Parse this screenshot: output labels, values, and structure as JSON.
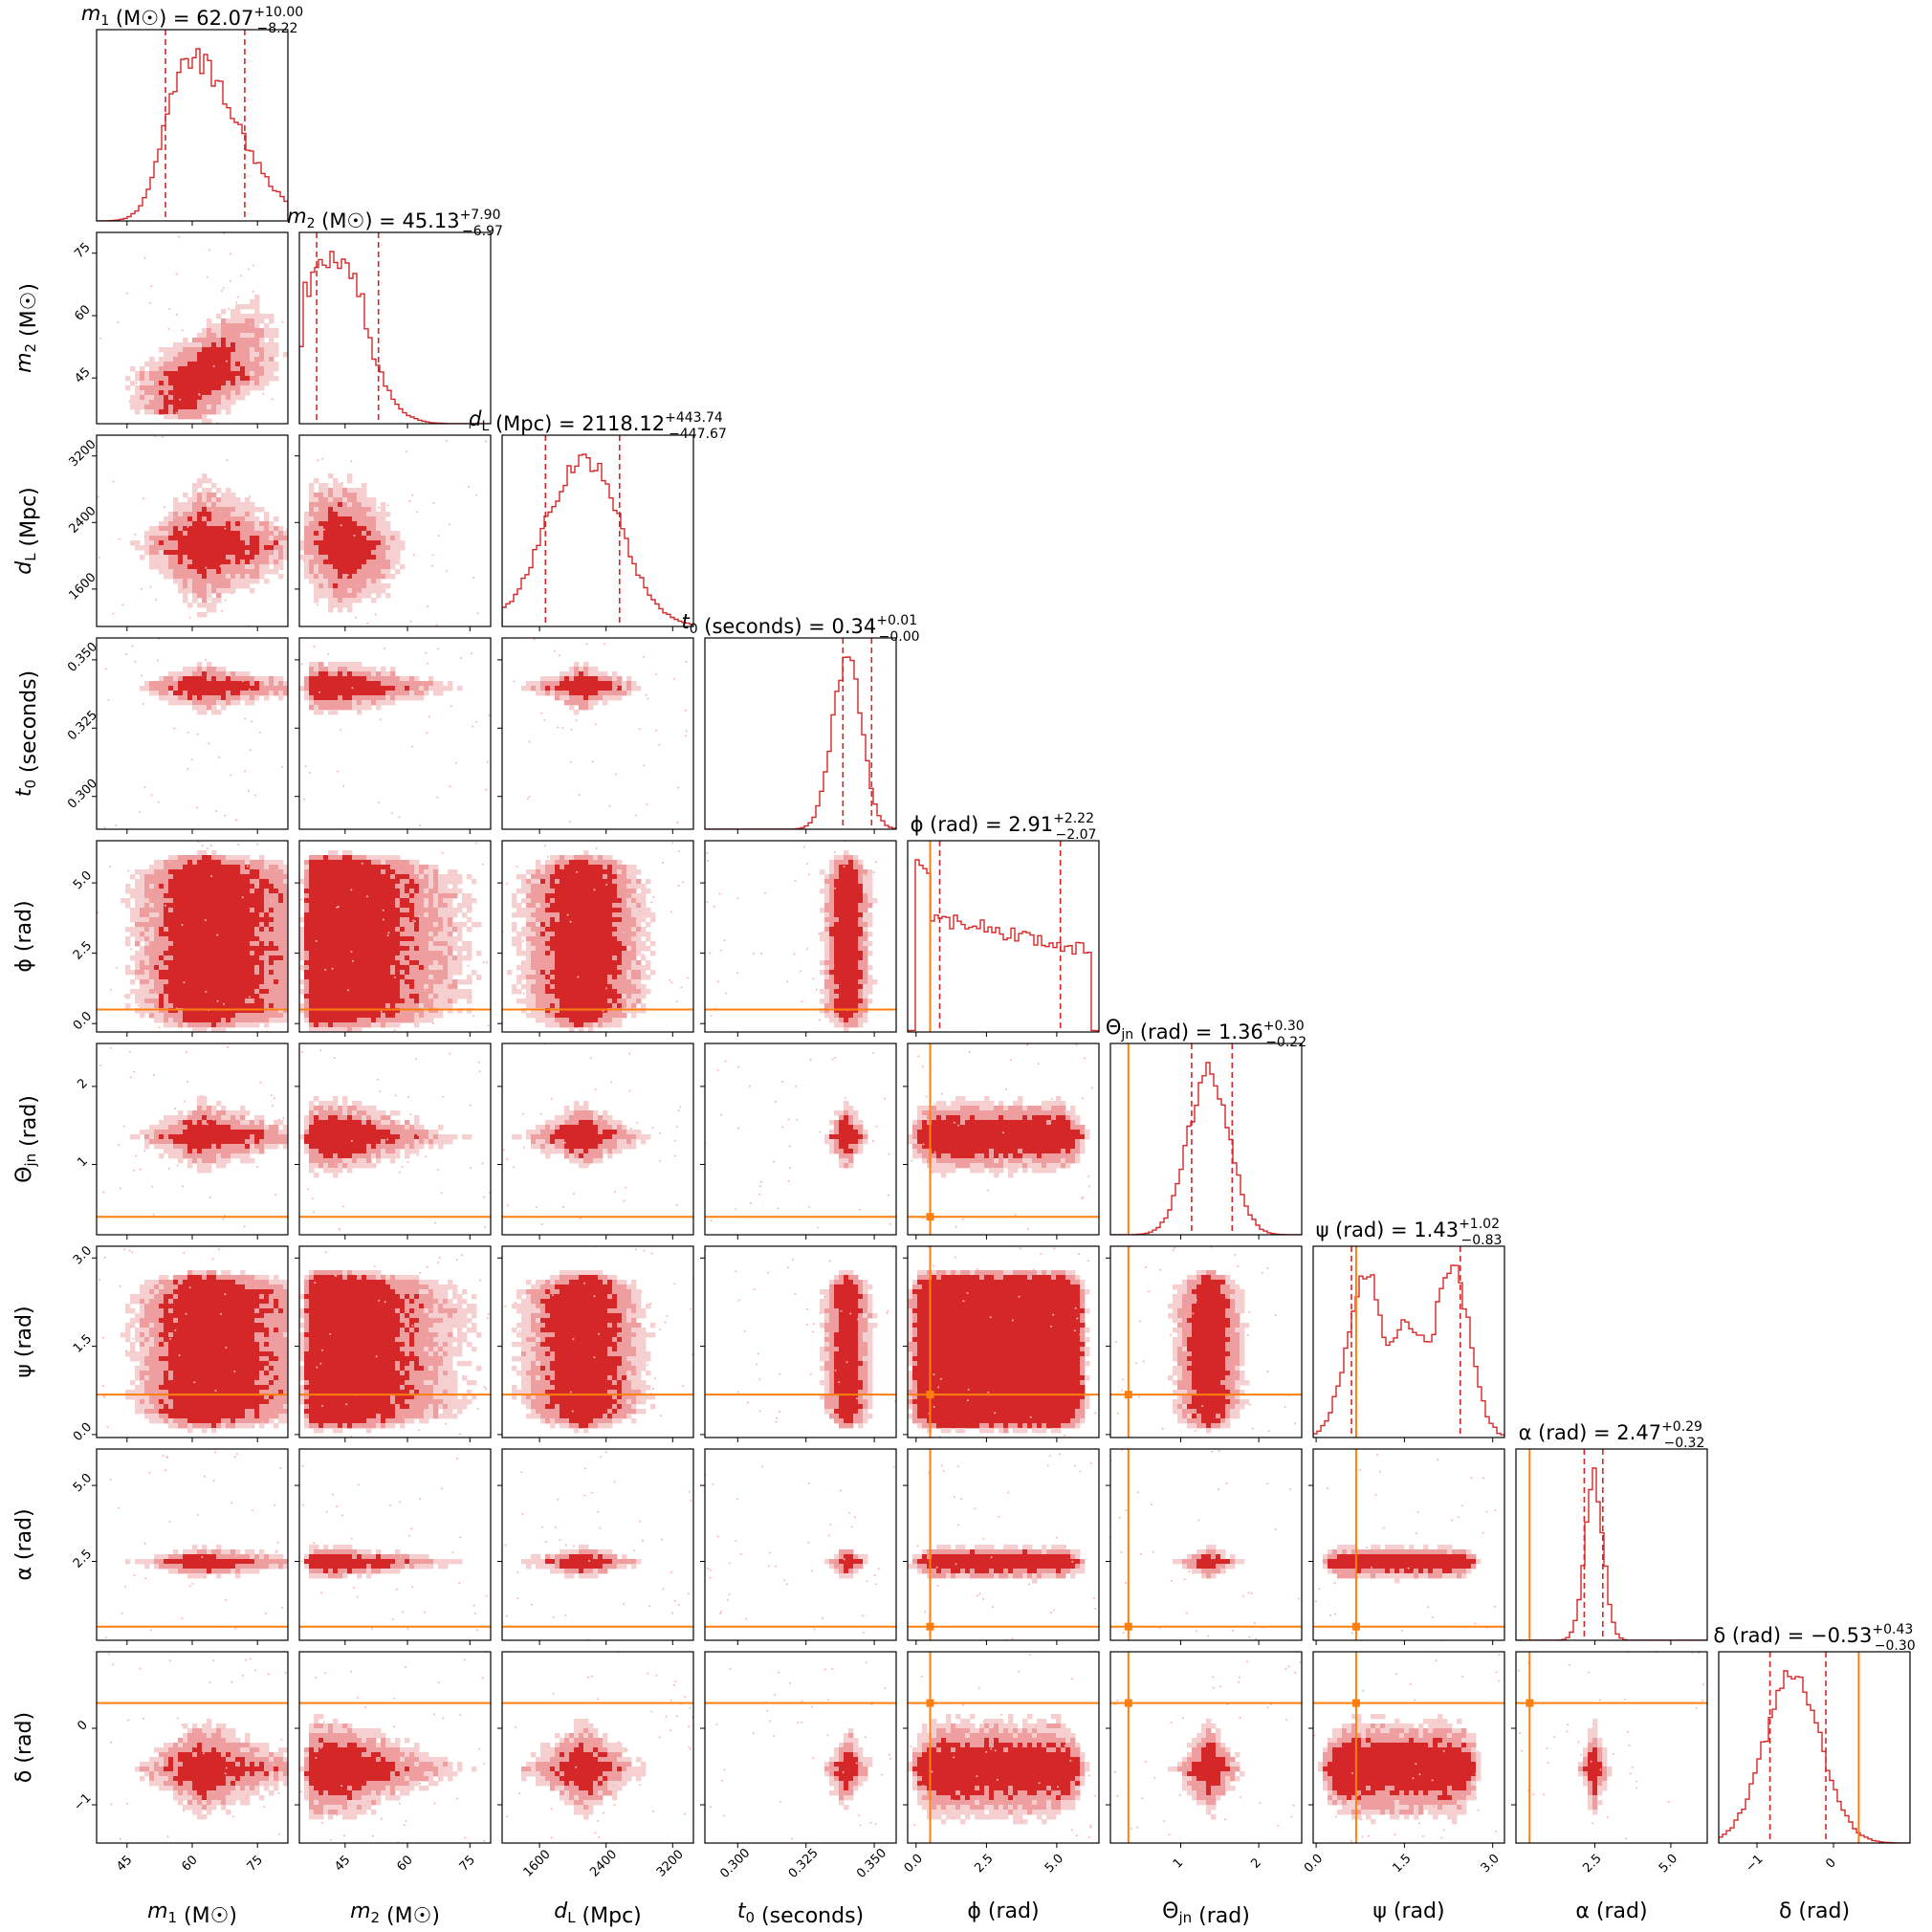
{
  "colors": {
    "posterior": "#d62728",
    "posterior_light": "#ee9e9f",
    "posterior_lighter": "#f6d0d0",
    "truth": "#ff7f0e",
    "frame": "#000000"
  },
  "chart_data": {
    "type": "corner",
    "title": "",
    "parameters": [
      {
        "key": "m1",
        "label": "m₁ (M☉)",
        "sym": "m",
        "sub": "1",
        "unit": "(M☉)",
        "title_value": "62.07",
        "plus": "+10.00",
        "minus": "−8.22",
        "range": [
          38,
          82
        ],
        "ticks": [
          45,
          60,
          75
        ],
        "tick_labels": [
          "45",
          "60",
          "75"
        ],
        "median": 62.07,
        "q_lo": 53.85,
        "q_hi": 72.07,
        "truth": null,
        "pmode": 1,
        "peak": 59
      },
      {
        "key": "m2",
        "label": "m₂ (M☉)",
        "sym": "m",
        "sub": "2",
        "unit": "(M☉)",
        "title_value": "45.13",
        "plus": "+7.90",
        "minus": "−6.97",
        "range": [
          34,
          80
        ],
        "ticks": [
          45,
          60,
          75
        ],
        "tick_labels": [
          "45",
          "60",
          "75"
        ],
        "median": 45.13,
        "q_lo": 38.16,
        "q_hi": 53.03,
        "truth": null,
        "pmode": 2,
        "peak": 42
      },
      {
        "key": "dL",
        "label": "d_L (Mpc)",
        "sym": "d",
        "sub": "L",
        "unit": "(Mpc)",
        "title_value": "2118.12",
        "plus": "+443.74",
        "minus": "−447.67",
        "range": [
          1150,
          3450
        ],
        "ticks": [
          1600,
          2400,
          3200
        ],
        "tick_labels": [
          "1600",
          "2400",
          "3200"
        ],
        "median": 2118.12,
        "q_lo": 1670.45,
        "q_hi": 2561.86,
        "truth": null,
        "pmode": 0
      },
      {
        "key": "t0",
        "label": "t₀ (seconds)",
        "sym": "t",
        "sub": "0",
        "unit": "(seconds)",
        "title_value": "0.34",
        "plus": "+0.01",
        "minus": "−0.00",
        "range": [
          0.288,
          0.358
        ],
        "ticks": [
          0.3,
          0.325,
          0.35
        ],
        "tick_labels": [
          "0.300",
          "0.325",
          "0.350"
        ],
        "median": 0.34,
        "q_lo": 0.3385,
        "q_hi": 0.349,
        "truth": null,
        "pmode": 0
      },
      {
        "key": "phi",
        "label": "ϕ (rad)",
        "sym": "ϕ",
        "sub": "",
        "unit": "(rad)",
        "title_value": "2.91",
        "plus": "+2.22",
        "minus": "−2.07",
        "range": [
          -0.3,
          6.5
        ],
        "ticks": [
          0,
          2.5,
          5
        ],
        "tick_labels": [
          "0.0",
          "2.5",
          "5.0"
        ],
        "median": 2.91,
        "q_lo": 0.84,
        "q_hi": 5.13,
        "truth": 0.5,
        "pmode": 3
      },
      {
        "key": "theta",
        "label": "Θ_jn (rad)",
        "sym": "Θ",
        "sub": "jn",
        "unit": "(rad)",
        "title_value": "1.36",
        "plus": "+0.30",
        "minus": "−0.22",
        "range": [
          0.1,
          2.55
        ],
        "ticks": [
          1,
          2
        ],
        "tick_labels": [
          "1",
          "2"
        ],
        "median": 1.36,
        "q_lo": 1.14,
        "q_hi": 1.66,
        "truth": 0.33,
        "pmode": 0
      },
      {
        "key": "psi",
        "label": "ψ (rad)",
        "sym": "ψ",
        "sub": "",
        "unit": "(rad)",
        "title_value": "1.43",
        "plus": "+1.02",
        "minus": "−0.83",
        "range": [
          -0.05,
          3.2
        ],
        "ticks": [
          0,
          1.5,
          3
        ],
        "tick_labels": [
          "0.0",
          "1.5",
          "3.0"
        ],
        "median": 1.43,
        "q_lo": 0.6,
        "q_hi": 2.45,
        "truth": 0.68,
        "pmode": 4
      },
      {
        "key": "alpha",
        "label": "α (rad)",
        "sym": "α",
        "sub": "",
        "unit": "(rad)",
        "title_value": "2.47",
        "plus": "+0.29",
        "minus": "−0.32",
        "range": [
          -0.1,
          6.2
        ],
        "ticks": [
          2.5,
          5
        ],
        "tick_labels": [
          "2.5",
          "5.0"
        ],
        "median": 2.47,
        "q_lo": 2.15,
        "q_hi": 2.76,
        "truth": 0.35,
        "pmode": 0
      },
      {
        "key": "delta",
        "label": "δ (rad)",
        "sym": "δ",
        "sub": "",
        "unit": "(rad)",
        "title_value": "−0.53",
        "plus": "+0.43",
        "minus": "−0.30",
        "range": [
          -1.5,
          1.0
        ],
        "ticks": [
          -1,
          0
        ],
        "tick_labels": [
          "−1",
          "0"
        ],
        "median": -0.53,
        "q_lo": -0.83,
        "q_hi": -0.1,
        "truth": 0.33,
        "pmode": 0
      }
    ],
    "correlations": {
      "1-0": 0.55,
      "2-1": -0.15,
      "5-2": -0.5,
      "5-3": -0.3,
      "8-3": 0.85,
      "7-5": 0.1
    }
  }
}
